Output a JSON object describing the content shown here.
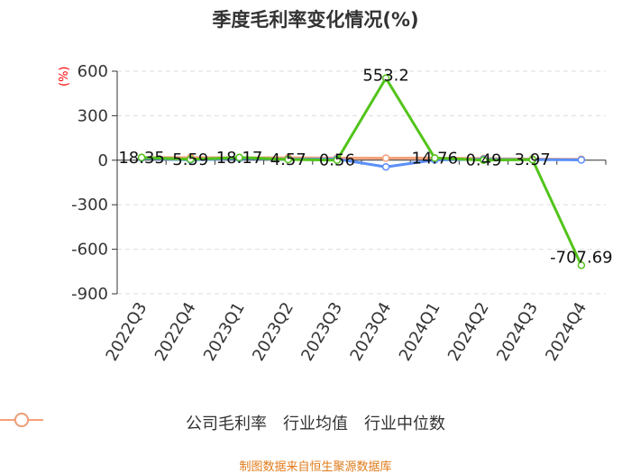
{
  "chart_data": {
    "type": "line",
    "title": "季度毛利率变化情况(%)",
    "ylabel": "(%)",
    "categories": [
      "2022Q3",
      "2022Q4",
      "2023Q1",
      "2023Q2",
      "2023Q3",
      "2023Q4",
      "2024Q1",
      "2024Q2",
      "2024Q3",
      "2024Q4"
    ],
    "ylim": [
      -900,
      600
    ],
    "yticks": [
      600,
      300,
      0,
      -300,
      -600,
      -900
    ],
    "grid": true,
    "legend_position": "bottom",
    "series": [
      {
        "name": "公司毛利率",
        "color": "#52c41a",
        "values": [
          18.35,
          5.59,
          18.17,
          4.57,
          0.56,
          553.2,
          14.76,
          0.49,
          3.97,
          -707.69
        ],
        "labels": [
          "18.35",
          "5.59",
          "18.17",
          "4.57",
          "0.56",
          "553.2",
          "14.76",
          "0.49",
          "3.97",
          "-707.69"
        ]
      },
      {
        "name": "行业均值",
        "color": "#5b8ff9",
        "values": [
          14,
          2,
          12,
          6,
          8,
          -45,
          2,
          6,
          4,
          2
        ]
      },
      {
        "name": "行业中位数",
        "color": "#f5a078",
        "values": [
          18,
          18,
          17,
          16,
          15,
          14,
          15,
          12,
          8,
          6
        ]
      }
    ]
  },
  "source": "制图数据来自恒生聚源数据库"
}
